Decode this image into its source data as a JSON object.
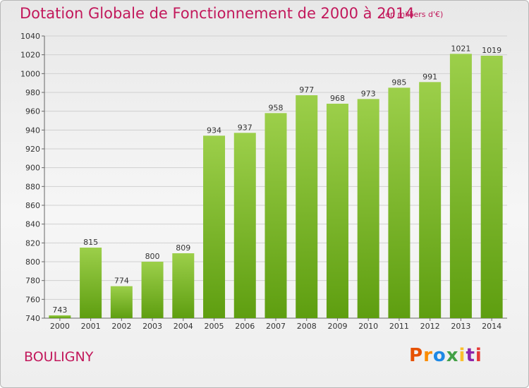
{
  "title": "Dotation Globale de Fonctionnement de 2000 à 2014",
  "unit": "(en milliers d'€)",
  "commune": "BOULIGNY",
  "logo": {
    "text": "Proxiti",
    "letters": [
      "P",
      "r",
      "o",
      "x",
      "i",
      "t",
      "i"
    ]
  },
  "colors": {
    "title": "#c2185b",
    "bar_top": "#9ccf4a",
    "bar_bottom": "#5e9e10"
  },
  "chart_data": {
    "type": "bar",
    "title": "Dotation Globale de Fonctionnement de 2000 à 2014",
    "subtitle": "(en milliers d'€)",
    "xlabel": "",
    "ylabel": "",
    "categories": [
      "2000",
      "2001",
      "2002",
      "2003",
      "2004",
      "2005",
      "2006",
      "2007",
      "2008",
      "2009",
      "2010",
      "2011",
      "2012",
      "2013",
      "2014"
    ],
    "values": [
      743,
      815,
      774,
      800,
      809,
      934,
      937,
      958,
      977,
      968,
      973,
      985,
      991,
      1021,
      1019
    ],
    "ylim": [
      740,
      1040
    ],
    "yticks": [
      740,
      760,
      780,
      800,
      820,
      840,
      860,
      880,
      900,
      920,
      940,
      960,
      980,
      1000,
      1020,
      1040
    ],
    "grid": true,
    "legend": "none"
  }
}
